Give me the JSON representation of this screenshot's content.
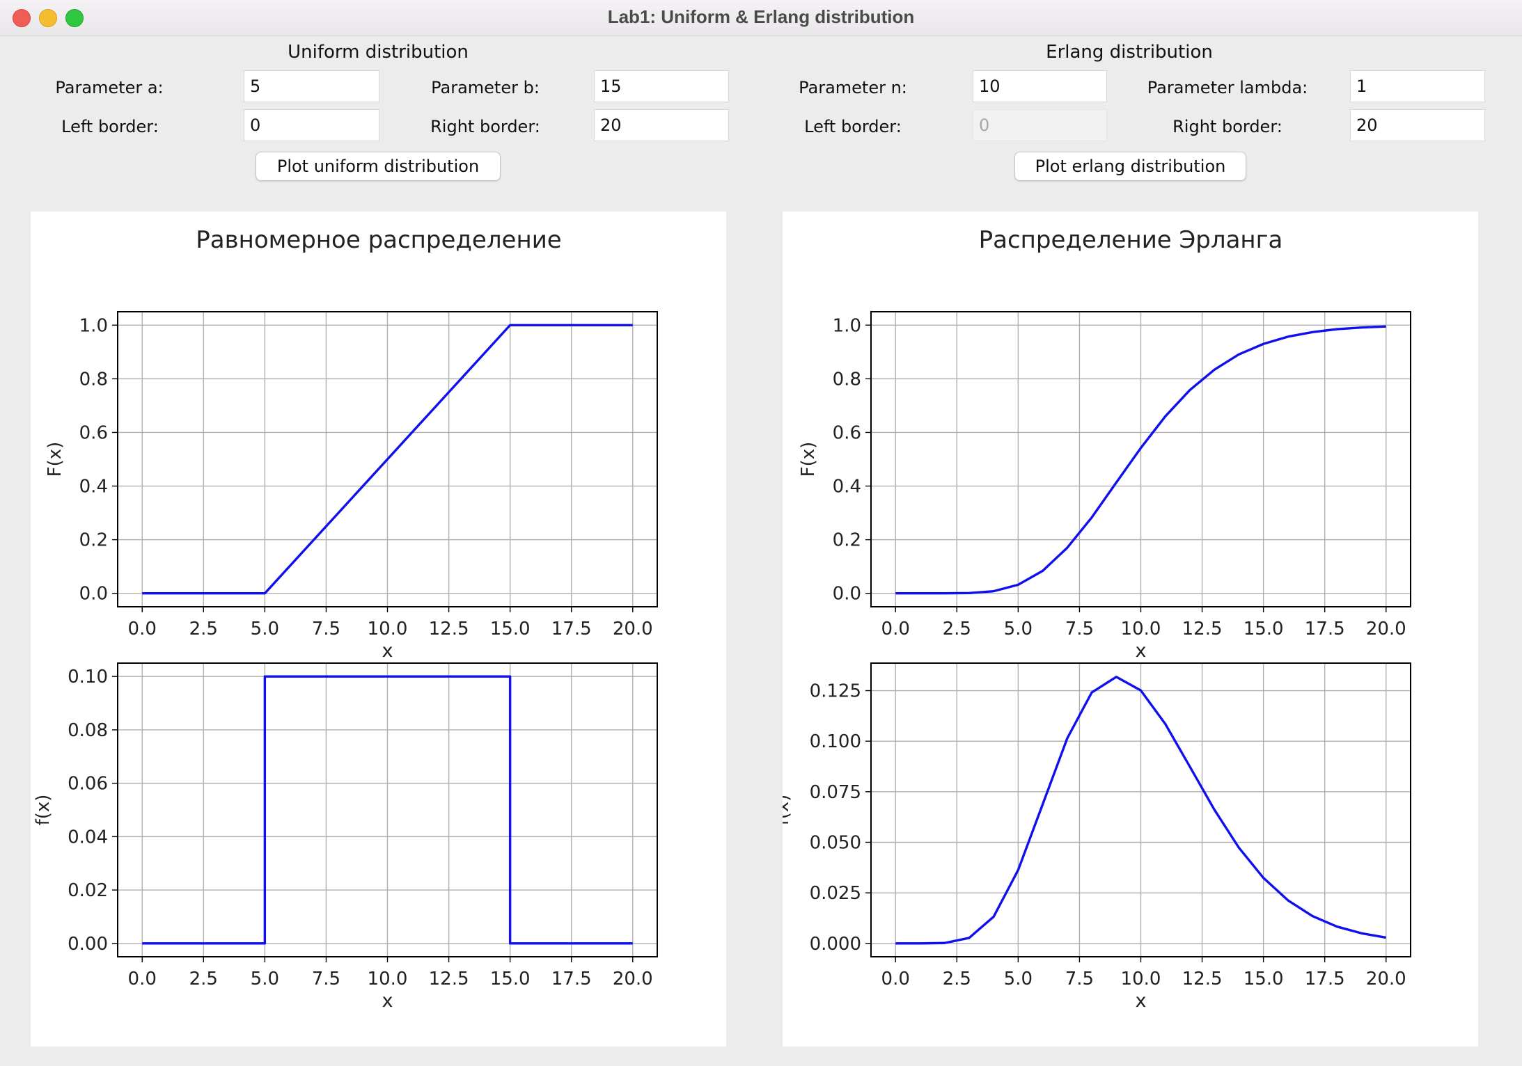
{
  "window": {
    "title": "Lab1: Uniform & Erlang distribution"
  },
  "uniform": {
    "section_title": "Uniform distribution",
    "param_a_label": "Parameter a:",
    "param_a_value": "5",
    "param_b_label": "Parameter b:",
    "param_b_value": "15",
    "left_border_label": "Left border:",
    "left_border_value": "0",
    "right_border_label": "Right border:",
    "right_border_value": "20",
    "plot_button_label": "Plot uniform distribution"
  },
  "erlang": {
    "section_title": "Erlang distribution",
    "param_n_label": "Parameter n:",
    "param_n_value": "10",
    "param_lambda_label": "Parameter lambda:",
    "param_lambda_value": "1",
    "left_border_label": "Left border:",
    "left_border_value": "0",
    "right_border_label": "Right border:",
    "right_border_value": "20",
    "plot_button_label": "Plot erlang distribution"
  },
  "colors": {
    "line": "#1010ee",
    "grid": "#b0b0b0",
    "axes": "#000000",
    "panel": "#ffffff",
    "window_bg": "#ececec"
  },
  "chart_data": [
    {
      "type": "line",
      "figure_title": "Равномерное распределение",
      "title": "",
      "xlabel": "x",
      "ylabel": "F(x)",
      "xlim": [
        -1,
        21
      ],
      "ylim": [
        -0.05,
        1.05
      ],
      "xticks": [
        "0.0",
        "2.5",
        "5.0",
        "7.5",
        "10.0",
        "12.5",
        "15.0",
        "17.5",
        "20.0"
      ],
      "yticks": [
        "0.0",
        "0.2",
        "0.4",
        "0.6",
        "0.8",
        "1.0"
      ],
      "grid": true,
      "series": [
        {
          "x": [
            0,
            5,
            15,
            20
          ],
          "y": [
            0,
            0,
            1,
            1
          ]
        }
      ]
    },
    {
      "type": "line",
      "title": "",
      "xlabel": "x",
      "ylabel": "f(x)",
      "xlim": [
        -1,
        21
      ],
      "ylim": [
        -0.005,
        0.105
      ],
      "xticks": [
        "0.0",
        "2.5",
        "5.0",
        "7.5",
        "10.0",
        "12.5",
        "15.0",
        "17.5",
        "20.0"
      ],
      "yticks": [
        "0.00",
        "0.02",
        "0.04",
        "0.06",
        "0.08",
        "0.10"
      ],
      "grid": true,
      "series": [
        {
          "x": [
            0,
            5,
            5,
            15,
            15,
            20
          ],
          "y": [
            0,
            0,
            0.1,
            0.1,
            0,
            0
          ]
        }
      ]
    },
    {
      "type": "line",
      "figure_title": "Распределение Эрланга",
      "title": "",
      "xlabel": "x",
      "ylabel": "F(x)",
      "xlim": [
        -1,
        21
      ],
      "ylim": [
        -0.05,
        1.05
      ],
      "xticks": [
        "0.0",
        "2.5",
        "5.0",
        "7.5",
        "10.0",
        "12.5",
        "15.0",
        "17.5",
        "20.0"
      ],
      "yticks": [
        "0.0",
        "0.2",
        "0.4",
        "0.6",
        "0.8",
        "1.0"
      ],
      "grid": true,
      "series": [
        {
          "x": [
            0,
            1,
            2,
            3,
            4,
            5,
            6,
            7,
            8,
            9,
            10,
            11,
            12,
            13,
            14,
            15,
            16,
            17,
            18,
            19,
            20
          ],
          "y": [
            0,
            0,
            0,
            0.001,
            0.008,
            0.032,
            0.084,
            0.17,
            0.283,
            0.413,
            0.542,
            0.66,
            0.758,
            0.834,
            0.891,
            0.93,
            0.957,
            0.974,
            0.985,
            0.991,
            0.995
          ]
        }
      ]
    },
    {
      "type": "line",
      "title": "",
      "xlabel": "x",
      "ylabel": "f(x)",
      "xlim": [
        -1,
        21
      ],
      "ylim": [
        -0.0066,
        0.1386
      ],
      "xticks": [
        "0.0",
        "2.5",
        "5.0",
        "7.5",
        "10.0",
        "12.5",
        "15.0",
        "17.5",
        "20.0"
      ],
      "yticks": [
        "0.000",
        "0.025",
        "0.050",
        "0.075",
        "0.100",
        "0.125"
      ],
      "grid": true,
      "series": [
        {
          "x": [
            0,
            1,
            2,
            3,
            4,
            5,
            6,
            7,
            8,
            9,
            10,
            11,
            12,
            13,
            14,
            15,
            16,
            17,
            18,
            19,
            20
          ],
          "y": [
            0,
            0,
            0.0002,
            0.0027,
            0.0132,
            0.0363,
            0.0688,
            0.1014,
            0.1241,
            0.1318,
            0.1251,
            0.1085,
            0.0874,
            0.0661,
            0.0473,
            0.0324,
            0.0213,
            0.0135,
            0.0083,
            0.005,
            0.0029
          ]
        }
      ]
    }
  ]
}
